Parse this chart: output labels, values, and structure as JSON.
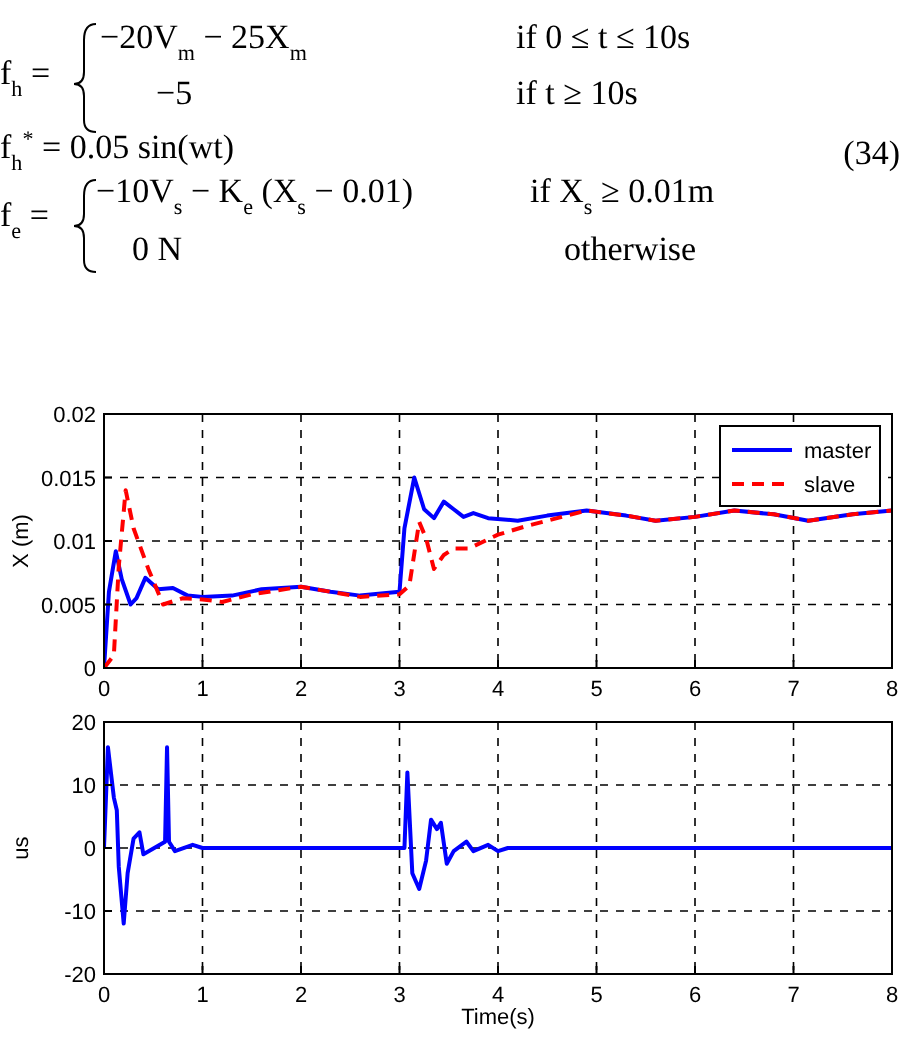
{
  "chart_data": [
    {
      "type": "line",
      "ylabel": "X (m)",
      "xlim": [
        0,
        8
      ],
      "xticks": [
        0,
        1,
        2,
        3,
        4,
        5,
        6,
        7,
        8
      ],
      "ylim": [
        0,
        0.02
      ],
      "yticks": [
        0,
        0.005,
        0.01,
        0.015,
        0.02
      ],
      "grid": true,
      "legend": "top right",
      "annotations": [
        "f$_{h}$ =",
        "−20V$_{m}$ − 25X$_{m}$",
        "if 0 ≤ t ≤ 10s",
        "−5",
        "if t ≥ 10s",
        "f$_{h}$$^{*}$ = 0.05 sin(wt)",
        "(34)",
        "f$_{e}$ =",
        "−10V$_{s}$ − K$_{e}$ (X$_{s}$ − 0.01)",
        "if X$_{s}$ ≥ 0.01m",
        "0 N",
        "otherwise"
      ],
      "series": [
        {
          "name": "master",
          "color": "#0000ff",
          "line_style": "solid",
          "x": [
            0,
            0.05,
            0.12,
            0.18,
            0.27,
            0.33,
            0.42,
            0.55,
            0.7,
            0.85,
            1,
            1.3,
            1.6,
            2,
            2.3,
            2.6,
            3,
            3.05,
            3.15,
            3.25,
            3.35,
            3.45,
            3.55,
            3.65,
            3.75,
            3.9,
            4.2,
            4.5,
            4.9,
            5.3,
            5.6,
            6,
            6.4,
            6.8,
            7.15,
            7.6,
            8
          ],
          "values": [
            0,
            0.006,
            0.0092,
            0.007,
            0.005,
            0.0055,
            0.0071,
            0.0062,
            0.0063,
            0.0057,
            0.0056,
            0.0057,
            0.0062,
            0.0064,
            0.006,
            0.0057,
            0.006,
            0.011,
            0.015,
            0.0125,
            0.0118,
            0.0131,
            0.0125,
            0.0119,
            0.0122,
            0.0118,
            0.0116,
            0.012,
            0.0124,
            0.012,
            0.0116,
            0.0119,
            0.0124,
            0.0121,
            0.0116,
            0.0121,
            0.0124
          ]
        },
        {
          "name": "slave",
          "color": "#ff0000",
          "line_style": "dashed",
          "x": [
            0,
            0.1,
            0.15,
            0.22,
            0.3,
            0.45,
            0.6,
            0.8,
            1,
            1.2,
            1.5,
            2,
            2.3,
            2.6,
            3,
            3.1,
            3.2,
            3.27,
            3.35,
            3.45,
            3.55,
            3.7,
            4,
            4.3,
            4.6,
            4.9,
            5.3,
            5.6,
            6,
            6.4,
            6.8,
            7.15,
            7.6,
            8
          ],
          "values": [
            0,
            0.001,
            0.008,
            0.014,
            0.011,
            0.0078,
            0.005,
            0.0055,
            0.0054,
            0.0052,
            0.0058,
            0.0064,
            0.006,
            0.0056,
            0.0058,
            0.0065,
            0.0115,
            0.0102,
            0.0078,
            0.0089,
            0.0094,
            0.0094,
            0.0105,
            0.0112,
            0.0118,
            0.0124,
            0.012,
            0.0116,
            0.0119,
            0.0124,
            0.0121,
            0.0116,
            0.0121,
            0.0124
          ]
        }
      ]
    },
    {
      "type": "line",
      "xlabel": "Time(s)",
      "ylabel": "us",
      "xlim": [
        0,
        8
      ],
      "xticks": [
        0,
        1,
        2,
        3,
        4,
        5,
        6,
        7,
        8
      ],
      "ylim": [
        -20,
        20
      ],
      "yticks": [
        -20,
        -10,
        0,
        10,
        20
      ],
      "grid": true,
      "series": [
        {
          "color": "#0000ff",
          "line_style": "solid",
          "x": [
            0,
            0.04,
            0.07,
            0.1,
            0.13,
            0.15,
            0.2,
            0.24,
            0.3,
            0.36,
            0.4,
            0.62,
            0.64,
            0.66,
            0.72,
            0.9,
            1,
            3.05,
            3.08,
            3.13,
            3.2,
            3.27,
            3.32,
            3.38,
            3.42,
            3.48,
            3.55,
            3.68,
            3.75,
            3.9,
            4,
            4.1,
            8
          ],
          "values": [
            0,
            16,
            12,
            8,
            6,
            -3,
            -12,
            -4,
            1.5,
            2.5,
            -1,
            1,
            16,
            1,
            -0.5,
            0.5,
            0,
            0,
            12,
            -4,
            -6.5,
            -2,
            4.5,
            3,
            4,
            -2.5,
            -0.5,
            1,
            -0.5,
            0.5,
            -0.5,
            0,
            0
          ]
        }
      ]
    }
  ]
}
